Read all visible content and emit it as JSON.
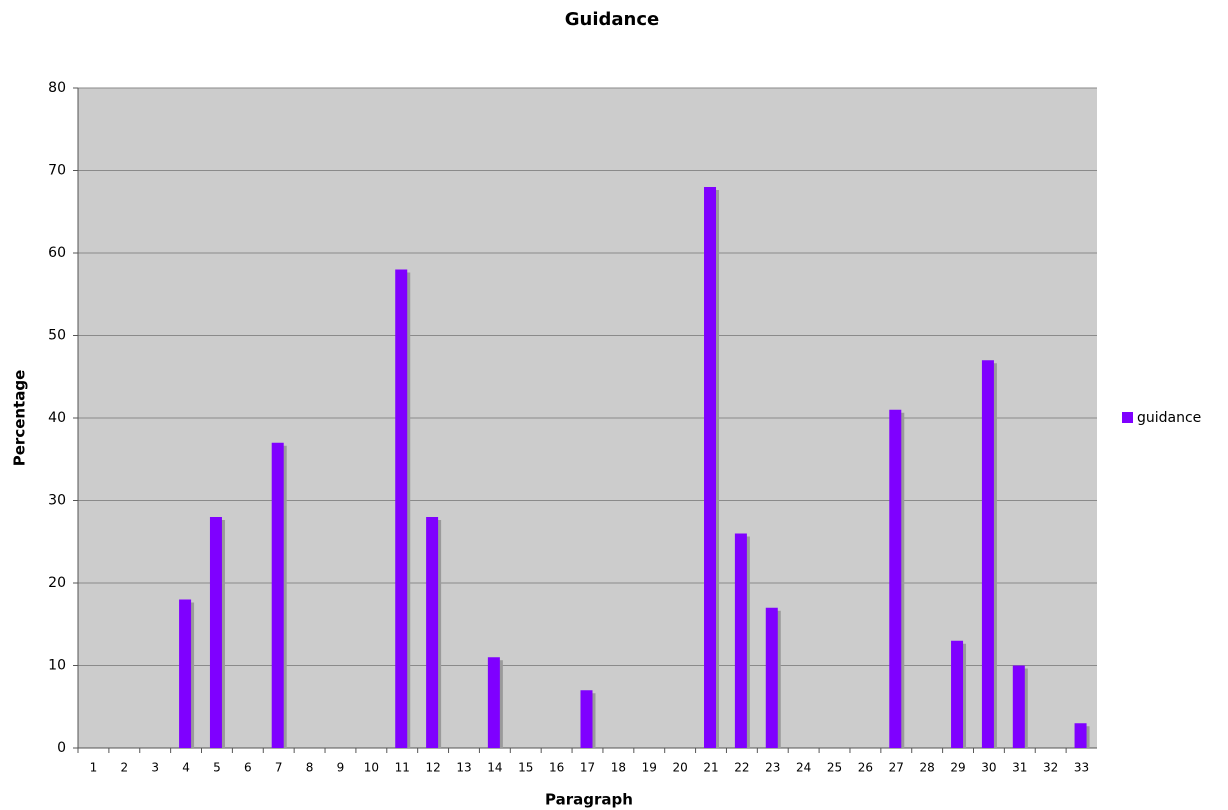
{
  "chart_data": {
    "type": "bar",
    "title": "Guidance",
    "x_label": "Paragraph",
    "y_label": "Percentage",
    "categories": [
      "1",
      "2",
      "3",
      "4",
      "5",
      "6",
      "7",
      "8",
      "9",
      "10",
      "11",
      "12",
      "13",
      "14",
      "15",
      "16",
      "17",
      "18",
      "19",
      "20",
      "21",
      "22",
      "23",
      "24",
      "25",
      "26",
      "27",
      "28",
      "29",
      "30",
      "31",
      "32",
      "33"
    ],
    "series": [
      {
        "name": "guidance",
        "color": "#7f00ff",
        "values": [
          0,
          0,
          0,
          18,
          28,
          0,
          37,
          0,
          0,
          0,
          58,
          28,
          0,
          11,
          0,
          0,
          7,
          0,
          0,
          0,
          68,
          26,
          17,
          0,
          0,
          0,
          41,
          0,
          13,
          47,
          10,
          0,
          3
        ]
      }
    ],
    "ylim": [
      0,
      80
    ],
    "yticks": [
      0,
      10,
      20,
      30,
      40,
      50,
      60,
      70,
      80
    ],
    "grid": true,
    "legend": "right"
  }
}
